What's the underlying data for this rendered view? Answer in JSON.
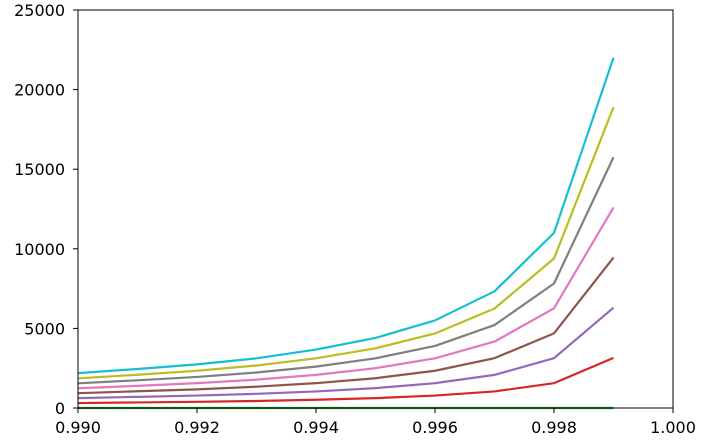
{
  "chart_data": {
    "type": "line",
    "title": "",
    "xlabel": "",
    "ylabel": "",
    "xlim": [
      0.99,
      1.0
    ],
    "ylim": [
      0,
      25000
    ],
    "grid": false,
    "x_ticks": [
      "0.990",
      "0.992",
      "0.994",
      "0.996",
      "0.998",
      "1.000"
    ],
    "x_tick_values": [
      0.99,
      0.992,
      0.994,
      0.996,
      0.998,
      1.0
    ],
    "y_ticks": [
      "0",
      "5000",
      "10000",
      "15000",
      "20000",
      "25000"
    ],
    "y_tick_values": [
      0,
      5000,
      10000,
      15000,
      20000,
      25000
    ],
    "x": [
      0.99,
      0.991,
      0.992,
      0.993,
      0.994,
      0.995,
      0.996,
      0.997,
      0.998,
      0.999
    ],
    "series": [
      {
        "color": "#2ca02c",
        "values": [
          0,
          0,
          0,
          0,
          0,
          0,
          0,
          0,
          0,
          0
        ]
      },
      {
        "color": "#d62728",
        "values": [
          310,
          350,
          390,
          440,
          520,
          620,
          780,
          1040,
          1560,
          3150
        ]
      },
      {
        "color": "#9467bd",
        "values": [
          620,
          700,
          780,
          890,
          1040,
          1250,
          1560,
          2080,
          3130,
          6300
        ]
      },
      {
        "color": "#8c564b",
        "values": [
          930,
          1050,
          1170,
          1340,
          1560,
          1870,
          2340,
          3130,
          4690,
          9450
        ]
      },
      {
        "color": "#e377c2",
        "values": [
          1240,
          1390,
          1560,
          1780,
          2080,
          2500,
          3120,
          4170,
          6260,
          12600
        ]
      },
      {
        "color": "#7f7f7f",
        "values": [
          1550,
          1740,
          1950,
          2230,
          2600,
          3120,
          3900,
          5210,
          7820,
          15750
        ]
      },
      {
        "color": "#bcbd22",
        "values": [
          1860,
          2090,
          2340,
          2670,
          3120,
          3750,
          4680,
          6250,
          9390,
          18900
        ]
      },
      {
        "color": "#17becf",
        "values": [
          2190,
          2450,
          2740,
          3120,
          3670,
          4400,
          5500,
          7330,
          11000,
          22000
        ]
      }
    ]
  }
}
